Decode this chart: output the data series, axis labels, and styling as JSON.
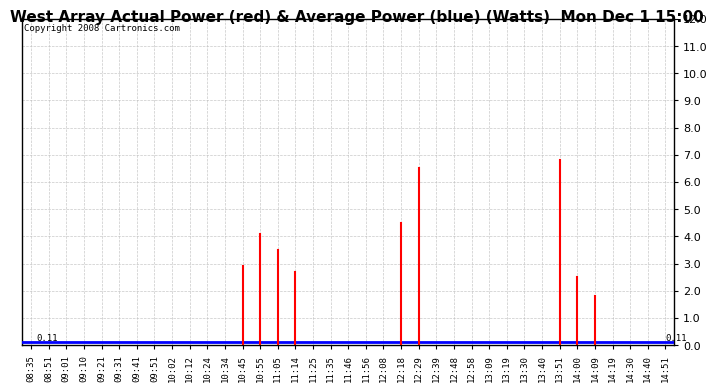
{
  "title": "West Array Actual Power (red) & Average Power (blue) (Watts)  Mon Dec 1 15:00",
  "copyright": "Copyright 2008 Cartronics.com",
  "ylim": [
    0.0,
    12.0
  ],
  "yticks": [
    0.0,
    1.0,
    2.0,
    3.0,
    4.0,
    5.0,
    6.0,
    7.0,
    8.0,
    9.0,
    10.0,
    11.0,
    12.0
  ],
  "avg_value": 0.11,
  "avg_label": "0.11",
  "x_labels": [
    "08:35",
    "08:51",
    "09:01",
    "09:10",
    "09:21",
    "09:31",
    "09:41",
    "09:51",
    "10:02",
    "10:12",
    "10:24",
    "10:34",
    "10:45",
    "10:55",
    "11:05",
    "11:14",
    "11:25",
    "11:35",
    "11:46",
    "11:56",
    "12:08",
    "12:18",
    "12:29",
    "12:39",
    "12:48",
    "12:58",
    "13:09",
    "13:19",
    "13:30",
    "13:40",
    "13:51",
    "14:00",
    "14:09",
    "14:19",
    "14:30",
    "14:40",
    "14:51"
  ],
  "spike_indices": [
    12,
    13,
    14,
    15,
    21,
    22,
    30,
    31,
    32
  ],
  "spike_values": [
    2.9,
    4.1,
    3.5,
    2.7,
    4.5,
    6.5,
    6.8,
    2.5,
    1.8
  ],
  "spike_color": "#ff0000",
  "avg_color": "#0000ff",
  "grid_color": "#bbbbbb",
  "background_color": "#ffffff",
  "title_fontsize": 11,
  "tick_fontsize": 6.5,
  "copyright_fontsize": 6.5
}
